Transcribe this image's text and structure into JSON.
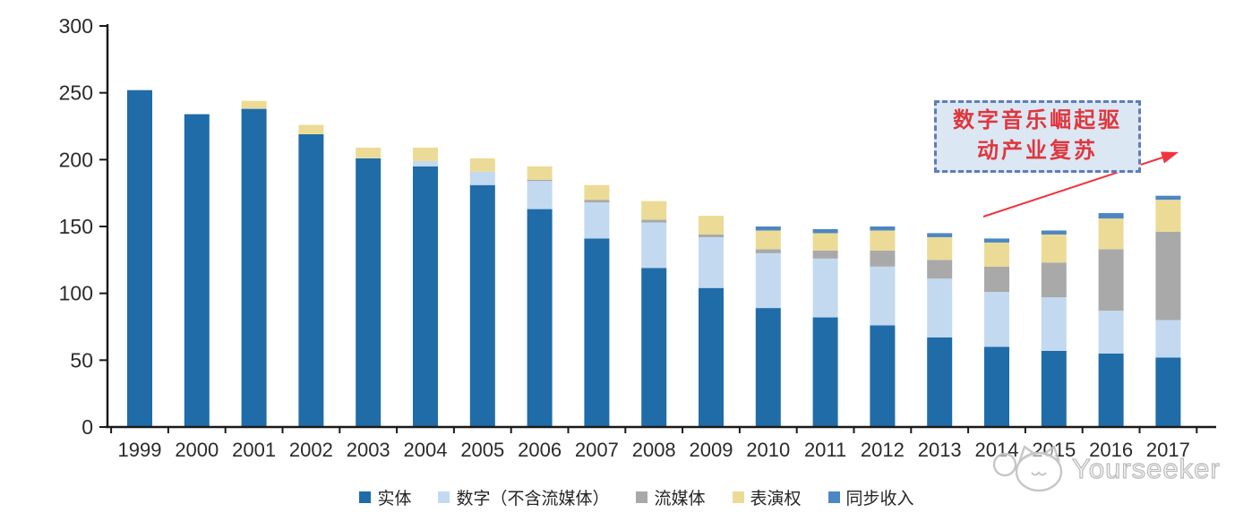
{
  "chart_data": {
    "type": "bar",
    "stacked": true,
    "title": "",
    "xlabel": "",
    "ylabel": "",
    "categories": [
      "1999",
      "2000",
      "2001",
      "2002",
      "2003",
      "2004",
      "2005",
      "2006",
      "2007",
      "2008",
      "2009",
      "2010",
      "2011",
      "2012",
      "2013",
      "2014",
      "2015",
      "2016",
      "2017"
    ],
    "series": [
      {
        "name": "实体",
        "color": "#1F6CA9",
        "values": [
          252,
          234,
          238,
          219,
          201,
          195,
          181,
          163,
          141,
          119,
          104,
          89,
          82,
          76,
          67,
          60,
          57,
          55,
          52
        ]
      },
      {
        "name": "数字（不含流媒体）",
        "color": "#C3D9EF",
        "values": [
          0,
          0,
          0,
          0,
          0,
          4,
          10,
          21,
          27,
          34,
          38,
          41,
          44,
          44,
          44,
          41,
          40,
          32,
          28
        ]
      },
      {
        "name": "流媒体",
        "color": "#A9A9A9",
        "values": [
          0,
          0,
          0,
          0,
          0,
          0,
          0,
          1,
          2,
          2,
          2,
          3,
          6,
          12,
          14,
          19,
          26,
          46,
          66
        ]
      },
      {
        "name": "表演权",
        "color": "#EBDB96",
        "values": [
          0,
          0,
          6,
          7,
          8,
          10,
          10,
          10,
          11,
          14,
          14,
          14,
          13,
          15,
          17,
          18,
          21,
          23,
          24
        ]
      },
      {
        "name": "同步收入",
        "color": "#4D87C3",
        "values": [
          0,
          0,
          0,
          0,
          0,
          0,
          0,
          0,
          0,
          0,
          0,
          3,
          3,
          3,
          3,
          3,
          3,
          4,
          3
        ]
      }
    ],
    "ylim": [
      0,
      300
    ],
    "yticks": [
      0,
      50,
      100,
      150,
      200,
      250,
      300
    ],
    "grid": false,
    "legend_position": "bottom"
  },
  "annotation": {
    "line1": "数字音乐崛起驱",
    "line2": "动产业复苏",
    "text_color": "#E0363C",
    "border_color": "#5F7DB8",
    "fill_color": "#DCE7F4",
    "arrow_color": "#F2333F"
  },
  "watermark": {
    "text": "Yourseeker",
    "logo_icon": "cat-face-logo"
  },
  "axis": {
    "line_color": "#1a1a1a",
    "label_color": "#2b2b2b"
  }
}
